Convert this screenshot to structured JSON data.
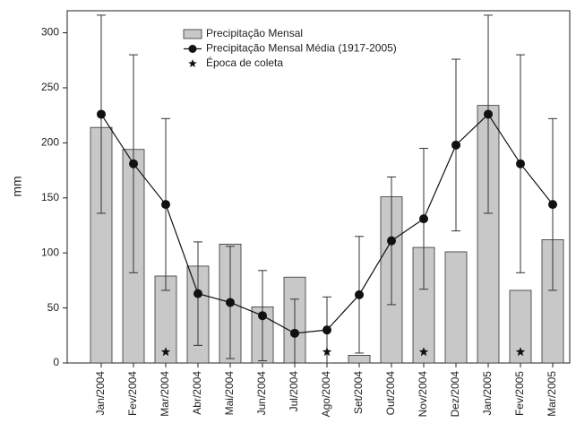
{
  "chart_data": {
    "type": "bar",
    "y_label": "mm",
    "categories": [
      "Jan/2004",
      "Fev/2004",
      "Mar/2004",
      "Abr/2004",
      "Mai/2004",
      "Jun/2004",
      "Jul/2004",
      "Ago/2004",
      "Set/2004",
      "Out/2004",
      "Nov/2004",
      "Dez/2004",
      "Jan/2005",
      "Fev/2005",
      "Mar/2005"
    ],
    "ylim": [
      0,
      320
    ],
    "yticks": [
      0,
      50,
      100,
      150,
      200,
      250,
      300
    ],
    "legend": "top-center",
    "series": [
      {
        "name": "Precipitação Mensal",
        "type": "bar",
        "color": "#c8c8c8",
        "values": [
          214,
          194,
          79,
          88,
          108,
          51,
          78,
          null,
          7,
          151,
          105,
          101,
          234,
          66,
          112
        ]
      },
      {
        "name": "Precipitação Mensal Média (1917-2005)",
        "type": "line",
        "color": "#111111",
        "values": [
          226,
          181,
          144,
          63,
          55,
          43,
          27,
          30,
          62,
          111,
          131,
          198,
          226,
          181,
          144
        ],
        "errors": [
          90,
          99,
          78,
          47,
          51,
          41,
          31,
          30,
          53,
          58,
          64,
          78,
          90,
          99,
          78
        ]
      },
      {
        "name": "Época de coleta",
        "type": "star",
        "color": "#111111",
        "values": [
          null,
          null,
          10,
          null,
          null,
          null,
          null,
          10,
          null,
          null,
          10,
          null,
          null,
          10,
          null
        ]
      }
    ]
  }
}
